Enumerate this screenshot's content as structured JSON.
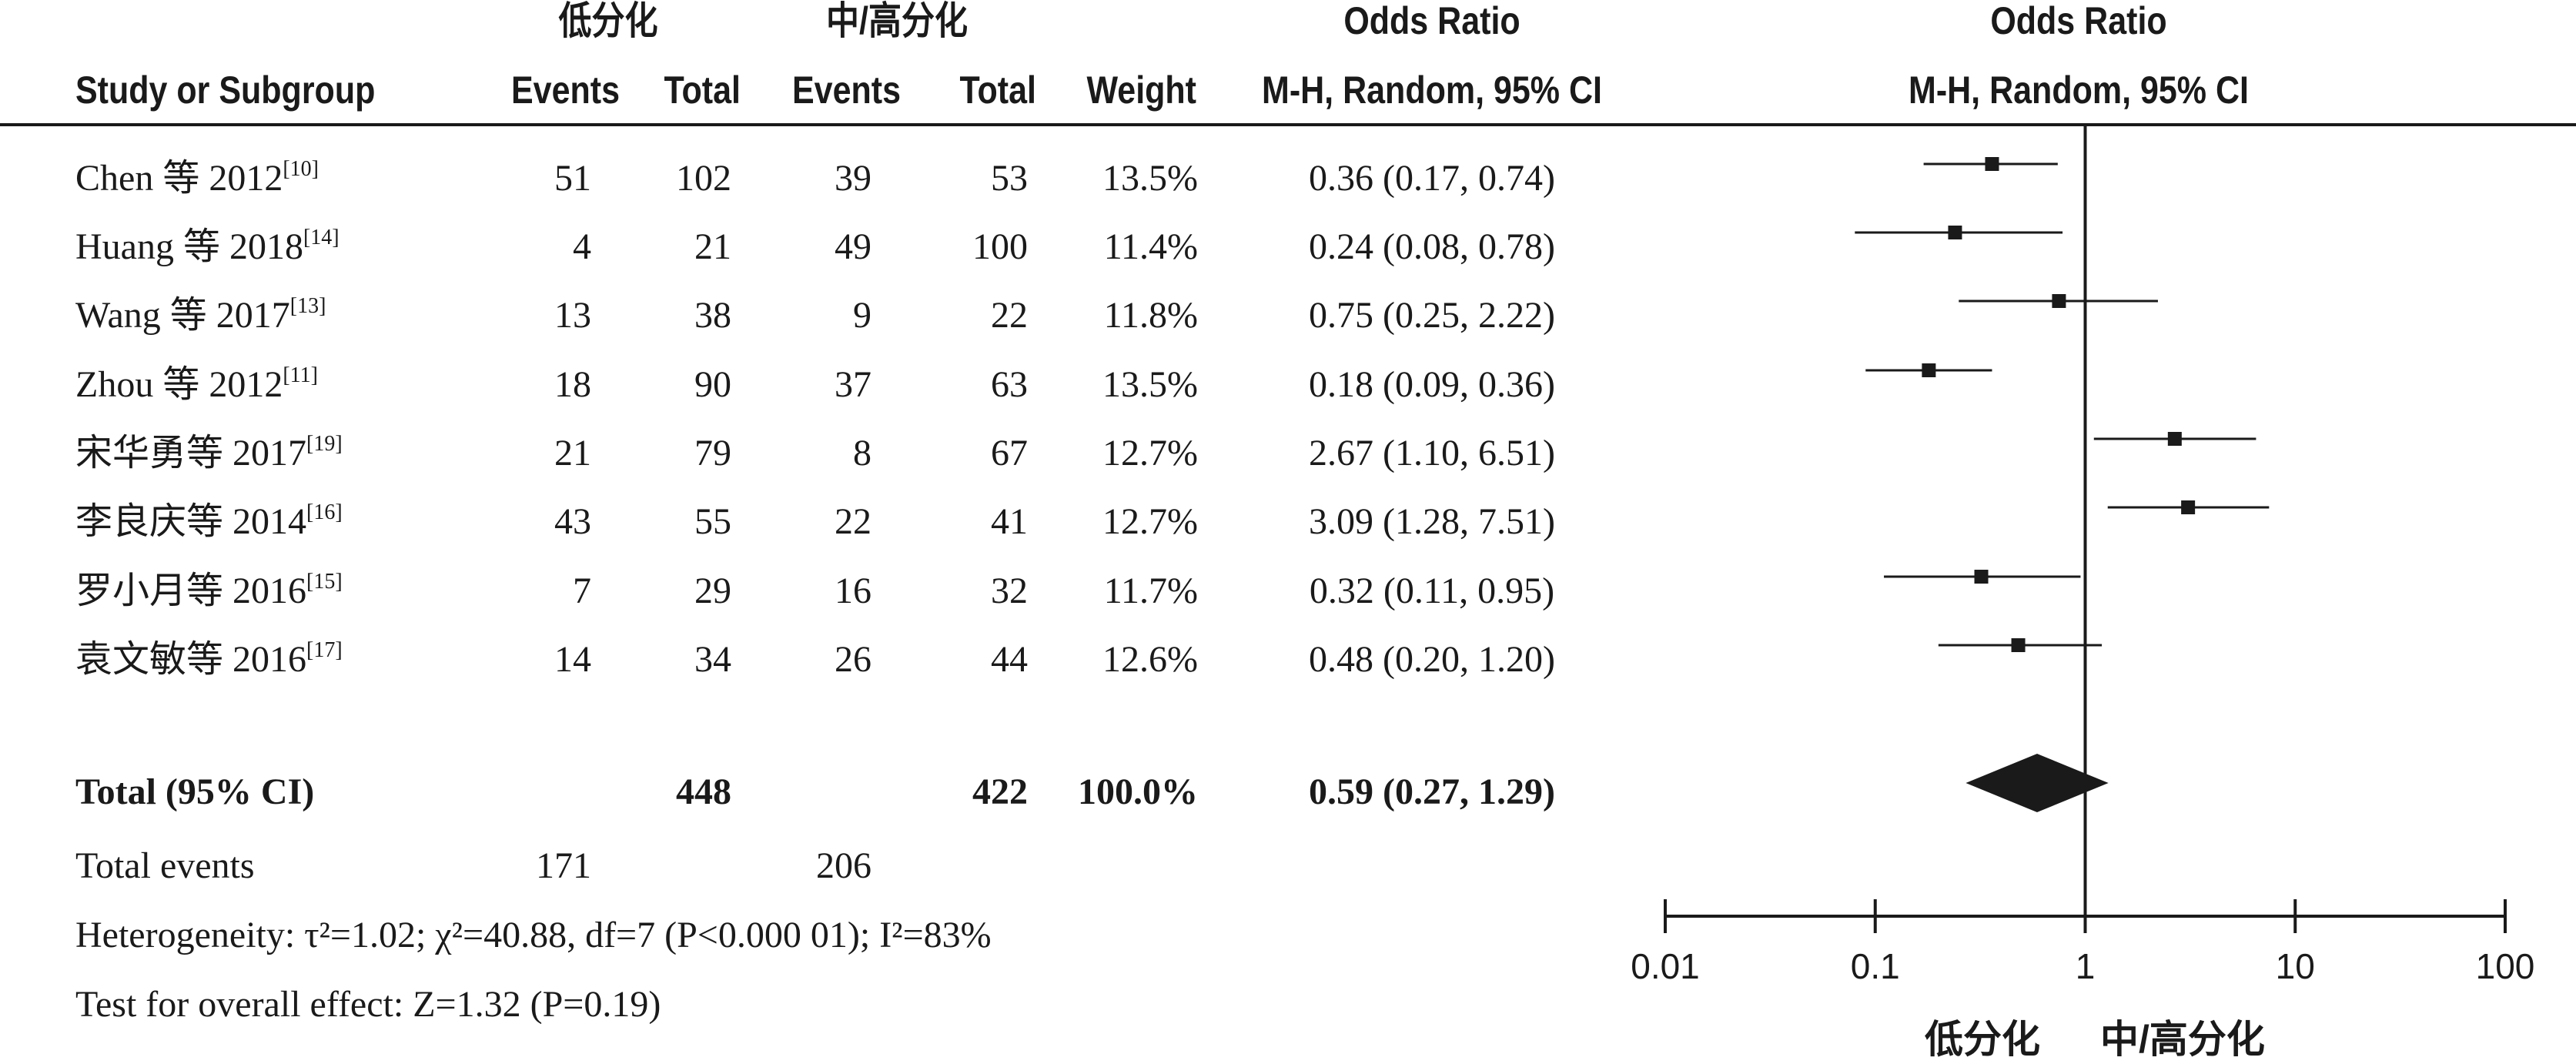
{
  "headers": {
    "group1": "低分化",
    "group2": "中/高分化",
    "or_title_left": "Odds Ratio",
    "or_title_right": "Odds Ratio",
    "study": "Study or Subgroup",
    "events1": "Events",
    "total1": "Total",
    "events2": "Events",
    "total2": "Total",
    "weight": "Weight",
    "method_left": "M-H, Random, 95% CI",
    "method_right": "M-H, Random, 95% CI"
  },
  "rows": [
    {
      "study": "Chen 等 2012",
      "ref": "[10]",
      "e1": "51",
      "t1": "102",
      "e2": "39",
      "t2": "53",
      "weight": "13.5%",
      "ci": "0.36 (0.17, 0.74)"
    },
    {
      "study": "Huang 等 2018",
      "ref": "[14]",
      "e1": "4",
      "t1": "21",
      "e2": "49",
      "t2": "100",
      "weight": "11.4%",
      "ci": "0.24 (0.08, 0.78)"
    },
    {
      "study": "Wang 等 2017",
      "ref": "[13]",
      "e1": "13",
      "t1": "38",
      "e2": "9",
      "t2": "22",
      "weight": "11.8%",
      "ci": "0.75 (0.25, 2.22)"
    },
    {
      "study": "Zhou 等 2012",
      "ref": "[11]",
      "e1": "18",
      "t1": "90",
      "e2": "37",
      "t2": "63",
      "weight": "13.5%",
      "ci": "0.18 (0.09, 0.36)"
    },
    {
      "study": "宋华勇等 2017",
      "ref": "[19]",
      "e1": "21",
      "t1": "79",
      "e2": "8",
      "t2": "67",
      "weight": "12.7%",
      "ci": "2.67 (1.10, 6.51)"
    },
    {
      "study": "李良庆等 2014",
      "ref": "[16]",
      "e1": "43",
      "t1": "55",
      "e2": "22",
      "t2": "41",
      "weight": "12.7%",
      "ci": "3.09 (1.28, 7.51)"
    },
    {
      "study": "罗小月等 2016",
      "ref": "[15]",
      "e1": "7",
      "t1": "29",
      "e2": "16",
      "t2": "32",
      "weight": "11.7%",
      "ci": "0.32 (0.11, 0.95)"
    },
    {
      "study": "袁文敏等 2016",
      "ref": "[17]",
      "e1": "14",
      "t1": "34",
      "e2": "26",
      "t2": "44",
      "weight": "12.6%",
      "ci": "0.48 (0.20, 1.20)"
    }
  ],
  "total": {
    "label": "Total (95% CI)",
    "t1": "448",
    "t2": "422",
    "weight": "100.0%",
    "ci": "0.59 (0.27, 1.29)"
  },
  "total_events": {
    "label": "Total events",
    "e1": "171",
    "e2": "206"
  },
  "heterogeneity": "Heterogeneity: τ²=1.02; χ²=40.88, df=7 (P<0.000 01); I²=83%",
  "overall_effect": "Test for overall effect: Z=1.32 (P=0.19)",
  "axis": {
    "favours_left": "低分化",
    "favours_right": "中/高分化"
  },
  "colors": {
    "ink": "#1a1a1a"
  },
  "chart_data": {
    "type": "forest",
    "scale": "log",
    "xlim": [
      0.01,
      100
    ],
    "ticks": [
      0.01,
      0.1,
      1,
      10,
      100
    ],
    "tick_labels": [
      "0.01",
      "0.1",
      "1",
      "10",
      "100"
    ],
    "reference_line": 1,
    "studies": [
      {
        "or": 0.36,
        "lo": 0.17,
        "hi": 0.74
      },
      {
        "or": 0.24,
        "lo": 0.08,
        "hi": 0.78
      },
      {
        "or": 0.75,
        "lo": 0.25,
        "hi": 2.22
      },
      {
        "or": 0.18,
        "lo": 0.09,
        "hi": 0.36
      },
      {
        "or": 2.67,
        "lo": 1.1,
        "hi": 6.51
      },
      {
        "or": 3.09,
        "lo": 1.28,
        "hi": 7.51
      },
      {
        "or": 0.32,
        "lo": 0.11,
        "hi": 0.95
      },
      {
        "or": 0.48,
        "lo": 0.2,
        "hi": 1.2
      }
    ],
    "pooled": {
      "or": 0.59,
      "lo": 0.27,
      "hi": 1.29
    }
  }
}
